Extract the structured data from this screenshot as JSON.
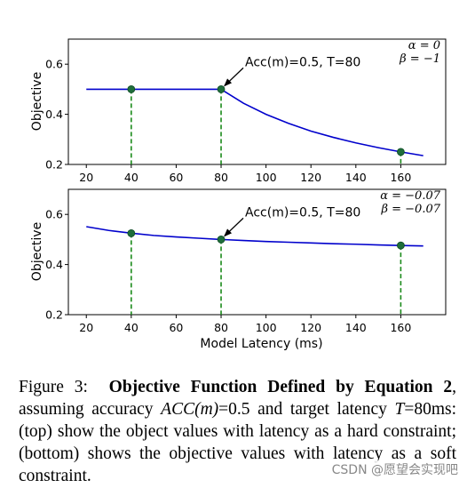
{
  "chart_data": [
    {
      "type": "line",
      "xlabel": "",
      "ylabel": "Objective",
      "xlim": [
        12,
        180
      ],
      "ylim": [
        0.2,
        0.7
      ],
      "xticks": [
        "20",
        "40",
        "60",
        "80",
        "100",
        "120",
        "140",
        "160"
      ],
      "yticks": [
        "0.2",
        "0.4",
        "0.6"
      ],
      "params": [
        "α = 0",
        "β = −1"
      ],
      "annotation": "Acc(m)=0.5, T=80",
      "curve": {
        "color": "#0000cc",
        "x": [
          20,
          30,
          40,
          50,
          60,
          70,
          80,
          90,
          100,
          110,
          120,
          130,
          140,
          150,
          160,
          170
        ],
        "y": [
          0.5,
          0.5,
          0.5,
          0.5,
          0.5,
          0.5,
          0.5,
          0.444,
          0.4,
          0.364,
          0.333,
          0.308,
          0.286,
          0.267,
          0.25,
          0.235
        ]
      },
      "markers": {
        "color": "#1f6e3a",
        "x": [
          40,
          80,
          160
        ],
        "y": [
          0.5,
          0.5,
          0.25
        ]
      },
      "grid": false
    },
    {
      "type": "line",
      "xlabel": "Model Latency (ms)",
      "ylabel": "Objective",
      "xlim": [
        12,
        180
      ],
      "ylim": [
        0.2,
        0.7
      ],
      "xticks": [
        "20",
        "40",
        "60",
        "80",
        "100",
        "120",
        "140",
        "160"
      ],
      "yticks": [
        "0.2",
        "0.4",
        "0.6"
      ],
      "params": [
        "α = −0.07",
        "β = −0.07"
      ],
      "annotation": "Acc(m)=0.5, T=80",
      "curve": {
        "color": "#0000cc",
        "x": [
          20,
          30,
          40,
          50,
          60,
          70,
          80,
          90,
          100,
          110,
          120,
          130,
          140,
          150,
          160,
          170
        ],
        "y": [
          0.551,
          0.536,
          0.525,
          0.516,
          0.51,
          0.505,
          0.5,
          0.496,
          0.492,
          0.489,
          0.486,
          0.483,
          0.481,
          0.478,
          0.476,
          0.474
        ]
      },
      "markers": {
        "color": "#1f6e3a",
        "x": [
          40,
          80,
          160
        ],
        "y": [
          0.525,
          0.5,
          0.476
        ]
      },
      "grid": false
    }
  ],
  "caption": {
    "figure_label": "Figure 3:",
    "bold_title": "Objective Function Defined by Equation 2",
    "text_1": ", assuming accuracy ",
    "math_1": "ACC(m)",
    "text_2": "=0.5 and target latency ",
    "math_2": "T",
    "text_3": "=80ms: (top) show the object values with latency as a hard constraint; (bottom) shows the objective values with latency as a soft constraint."
  },
  "watermark": "CSDN @愿望会实现吧"
}
